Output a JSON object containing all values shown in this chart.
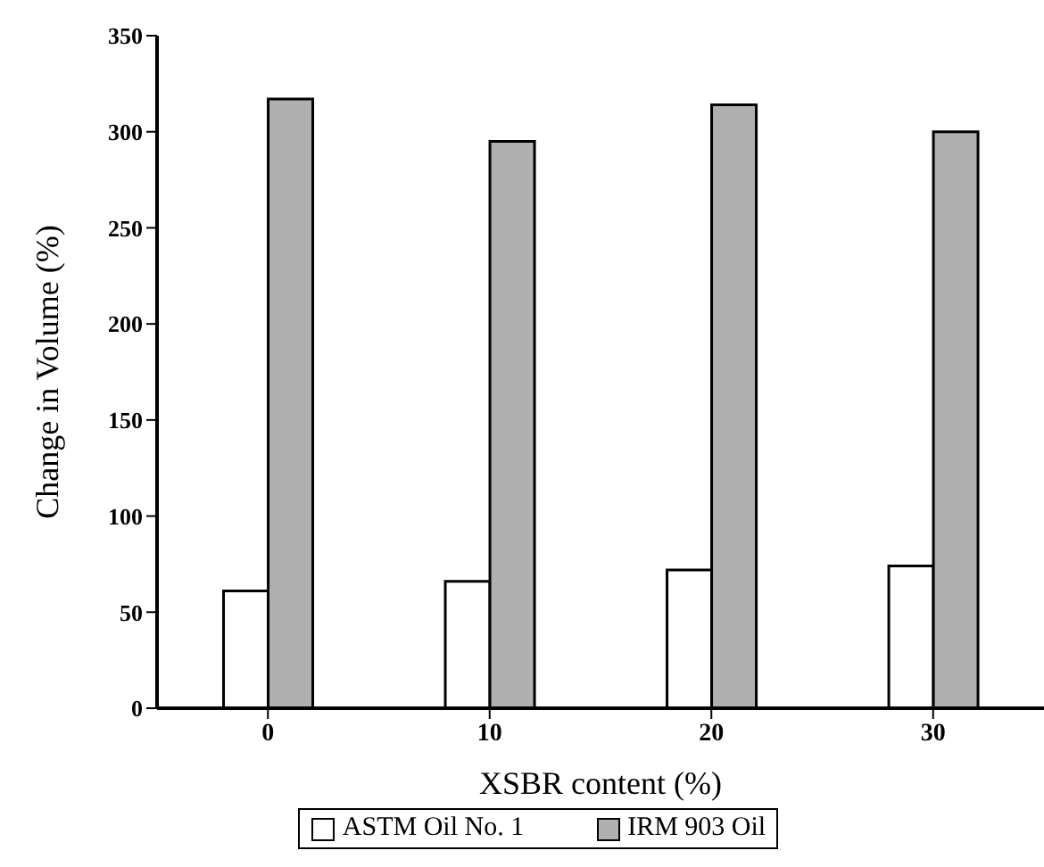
{
  "chart_data": {
    "type": "bar",
    "xlabel": "XSBR content (%)",
    "ylabel": "Change in Volume (%)",
    "categories": [
      "0",
      "10",
      "20",
      "30"
    ],
    "series": [
      {
        "name": "ASTM Oil No. 1",
        "color": "#ffffff",
        "values": [
          61,
          66,
          72,
          74
        ]
      },
      {
        "name": "IRM 903 Oil",
        "color": "#b0b0b0",
        "values": [
          317,
          295,
          314,
          300
        ]
      }
    ],
    "ylim": [
      0,
      350
    ],
    "yticks": [
      0,
      50,
      100,
      150,
      200,
      250,
      300,
      350
    ],
    "grid": false,
    "legend": "bottom"
  }
}
